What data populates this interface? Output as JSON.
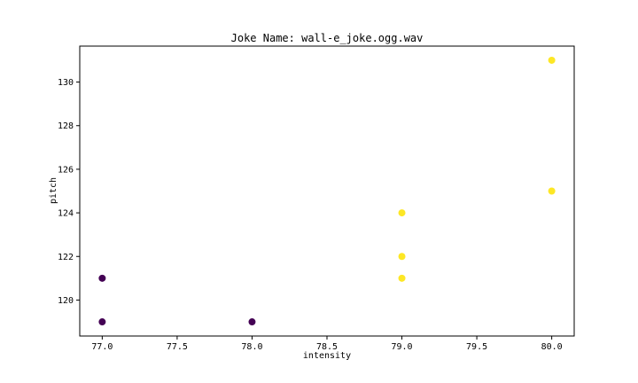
{
  "chart_data": {
    "type": "scatter",
    "title": "Joke Name: wall-e_joke.ogg.wav",
    "xlabel": "intensity",
    "ylabel": "pitch",
    "xlim": [
      76.85,
      80.15
    ],
    "ylim": [
      118.35,
      131.65
    ],
    "xticks": [
      77.0,
      77.5,
      78.0,
      78.5,
      79.0,
      79.5,
      80.0
    ],
    "xtick_labels": [
      "77.0",
      "77.5",
      "78.0",
      "78.5",
      "79.0",
      "79.5",
      "80.0"
    ],
    "yticks": [
      120,
      122,
      124,
      126,
      128,
      130
    ],
    "ytick_labels": [
      "120",
      "122",
      "124",
      "126",
      "128",
      "130"
    ],
    "grid": false,
    "legend": "none",
    "series": [
      {
        "color": "#440154",
        "points": [
          {
            "x": 77.0,
            "y": 121
          },
          {
            "x": 77.0,
            "y": 119
          },
          {
            "x": 78.0,
            "y": 119
          }
        ]
      },
      {
        "color": "#fde725",
        "points": [
          {
            "x": 79.0,
            "y": 124
          },
          {
            "x": 79.0,
            "y": 122
          },
          {
            "x": 79.0,
            "y": 121
          },
          {
            "x": 80.0,
            "y": 131
          },
          {
            "x": 80.0,
            "y": 125
          }
        ]
      }
    ]
  }
}
